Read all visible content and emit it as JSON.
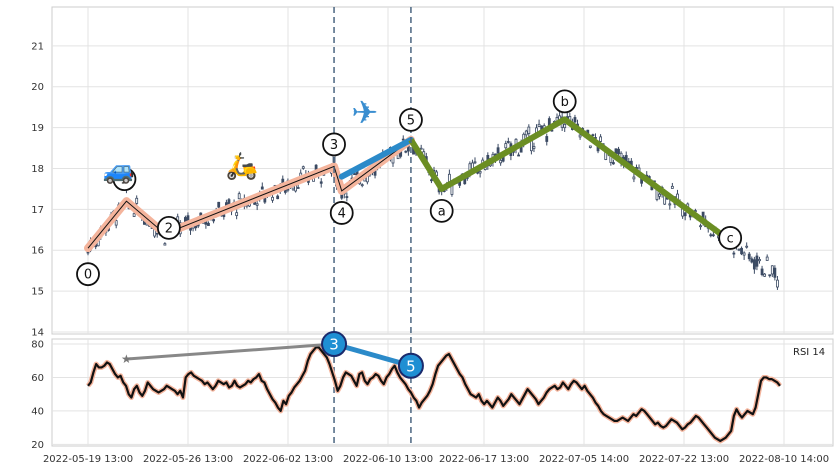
{
  "chart_data": {
    "type": "candlestick",
    "price_panel": {
      "y_ticks": [
        14,
        15,
        16,
        17,
        18,
        19,
        20,
        21
      ],
      "ylim": [
        13.95,
        21.95
      ],
      "grid": true,
      "elliott_impulse_points": [
        {
          "label": "0",
          "x": 0,
          "y": 16.05
        },
        {
          "label": "1",
          "x": 5,
          "y": 17.2
        },
        {
          "label": "2",
          "x": 10,
          "y": 16.4
        },
        {
          "label": "3",
          "x": 32,
          "y": 18.05
        },
        {
          "label": "4",
          "x": 33,
          "y": 17.45
        },
        {
          "label": "5",
          "x": 42,
          "y": 18.7
        }
      ],
      "elliott_corrective_points": [
        {
          "label": "5",
          "x": 42,
          "y": 18.7
        },
        {
          "label": "a",
          "x": 46,
          "y": 17.5
        },
        {
          "label": "b",
          "x": 62,
          "y": 19.2
        },
        {
          "label": "c",
          "x": 83,
          "y": 16.3
        }
      ],
      "projection_segment": {
        "from": {
          "x": 33,
          "y": 17.8
        },
        "to": {
          "x": 42,
          "y": 18.7
        }
      },
      "vertical_markers_x": [
        32,
        42
      ],
      "icons": [
        "car-icon",
        "scooter-icon",
        "airplane-icon"
      ]
    },
    "rsi_panel": {
      "label": "RSI 14",
      "y_ticks": [
        20,
        40,
        60,
        80
      ],
      "ylim": [
        19,
        83
      ],
      "badges": [
        {
          "label": "3",
          "x": 32,
          "y": 80
        },
        {
          "label": "5",
          "x": 42,
          "y": 67
        }
      ],
      "divergence_line": {
        "from": {
          "x": 5,
          "y": 71
        },
        "to": {
          "x": 32,
          "y": 80
        }
      },
      "values": [
        55,
        57,
        63,
        68,
        66,
        66,
        67,
        69,
        68,
        65,
        62,
        60,
        61,
        57,
        55,
        50,
        48,
        53,
        55,
        51,
        49,
        52,
        57,
        55,
        53,
        52,
        51,
        52,
        53,
        55,
        54,
        53,
        52,
        50,
        52,
        48,
        60,
        62,
        63,
        61,
        60,
        59,
        58,
        56,
        57,
        55,
        53,
        55,
        58,
        57,
        56,
        57,
        54,
        55,
        58,
        55,
        54,
        55,
        56,
        58,
        57,
        59,
        60,
        62,
        58,
        57,
        53,
        50,
        47,
        45,
        42,
        40,
        46,
        44,
        49,
        51,
        54,
        56,
        58,
        61,
        64,
        70,
        74,
        76,
        78,
        78,
        76,
        74,
        72,
        68,
        63,
        58,
        52,
        55,
        60,
        63,
        62,
        61,
        58,
        55,
        62,
        63,
        58,
        56,
        59,
        60,
        62,
        61,
        58,
        56,
        60,
        62,
        65,
        67,
        63,
        60,
        58,
        56,
        53,
        51,
        48,
        46,
        42,
        45,
        47,
        49,
        52,
        56,
        62,
        67,
        69,
        71,
        73,
        74,
        71,
        68,
        65,
        62,
        60,
        56,
        53,
        50,
        49,
        48,
        50,
        46,
        44,
        46,
        44,
        42,
        45,
        48,
        46,
        43,
        45,
        47,
        50,
        48,
        46,
        44,
        47,
        50,
        53,
        51,
        49,
        47,
        44,
        46,
        48,
        51,
        53,
        54,
        55,
        53,
        54,
        57,
        55,
        53,
        56,
        58,
        57,
        55,
        53,
        55,
        52,
        50,
        48,
        45,
        43,
        40,
        38,
        37,
        36,
        35,
        34,
        34,
        35,
        36,
        35,
        34,
        36,
        38,
        37,
        39,
        41,
        40,
        38,
        36,
        34,
        32,
        33,
        31,
        30,
        31,
        33,
        35,
        34,
        33,
        31,
        29,
        30,
        32,
        33,
        35,
        37,
        36,
        34,
        32,
        30,
        28,
        26,
        24,
        23,
        22,
        23,
        24,
        26,
        28,
        37,
        41,
        38,
        36,
        38,
        40,
        39,
        38,
        42,
        50,
        58,
        60,
        60,
        59,
        59,
        58,
        57,
        55
      ]
    },
    "x_tick_labels": [
      "2022-05-19 13:00",
      "2022-05-26 13:00",
      "2022-06-02 13:00",
      "2022-06-10 13:00",
      "2022-06-17 13:00",
      "2022-07-05 14:00",
      "2022-07-22 13:00",
      "2022-08-10 14:00"
    ],
    "x_tick_index": [
      0,
      7,
      14,
      21,
      28,
      35,
      42,
      49
    ],
    "colors": {
      "impulse_line": "#f4b49c",
      "corrective_line": "#6b8e23",
      "projection_line": "#2b8ac9",
      "divergence_line": "#888888",
      "marker_line": "#4a6580",
      "candle": "#3b4a63",
      "rsi_line": "#111111",
      "rsi_halo": "#f4b49c",
      "badge_fill": "#1f8fd3"
    }
  }
}
